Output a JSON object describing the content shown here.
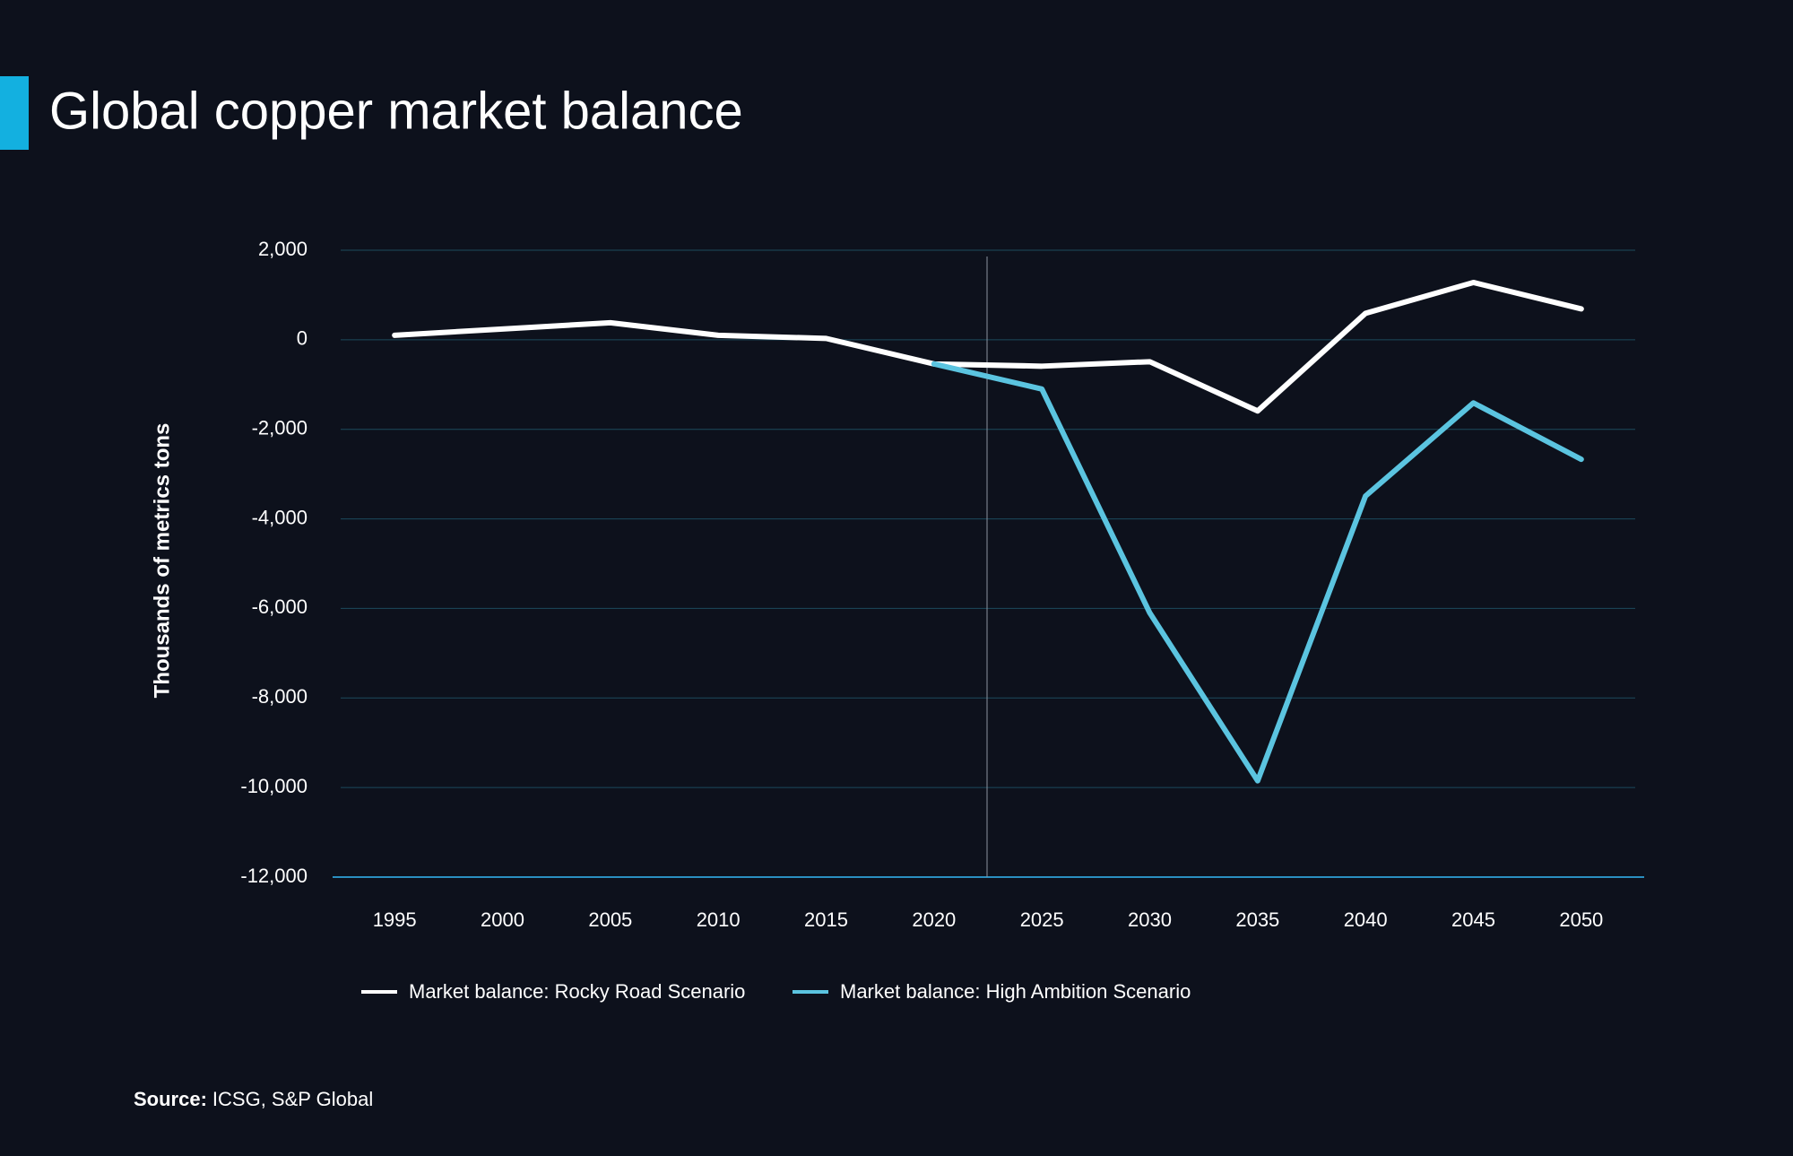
{
  "chart_data": {
    "type": "line",
    "title": "Global copper market balance",
    "y_label": "Thousands of metrics tons",
    "categories": [
      "1995",
      "2000",
      "2005",
      "2010",
      "2015",
      "2020",
      "2025",
      "2030",
      "2035",
      "2040",
      "2045",
      "2050"
    ],
    "series": [
      {
        "name": "Market balance: Rocky Road Scenario",
        "color": "#ffffff",
        "values": [
          100,
          240,
          380,
          100,
          30,
          -540,
          -590,
          -490,
          -1590,
          590,
          1280,
          690
        ]
      },
      {
        "name": "Market balance: High Ambition Scenario",
        "color": "#5bc4e0",
        "values": [
          null,
          null,
          null,
          null,
          null,
          -540,
          -1100,
          -6100,
          -9850,
          -3490,
          -1410,
          -2670
        ]
      }
    ],
    "ylim": [
      -12000,
      2000
    ],
    "yticks": [
      {
        "value": 2000,
        "label": "2,000"
      },
      0,
      {
        "value": -2000,
        "label": "-2,000"
      },
      {
        "value": -4000,
        "label": "-4,000"
      },
      {
        "value": -6000,
        "label": "-6,000"
      },
      {
        "value": -8000,
        "label": "-8,000"
      },
      {
        "value": -10000,
        "label": "-10,000"
      },
      {
        "value": -12000,
        "label": "-12,000"
      }
    ],
    "grid": true,
    "legend": "bottom",
    "source": {
      "label": "Source:",
      "text": "ICSG, S&P Global"
    }
  }
}
